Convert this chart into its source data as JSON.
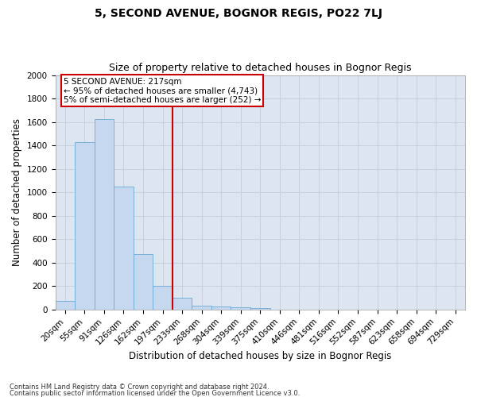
{
  "title": "5, SECOND AVENUE, BOGNOR REGIS, PO22 7LJ",
  "subtitle": "Size of property relative to detached houses in Bognor Regis",
  "xlabel": "Distribution of detached houses by size in Bognor Regis",
  "ylabel": "Number of detached properties",
  "footnote1": "Contains HM Land Registry data © Crown copyright and database right 2024.",
  "footnote2": "Contains public sector information licensed under the Open Government Licence v3.0.",
  "bin_labels": [
    "20sqm",
    "55sqm",
    "91sqm",
    "126sqm",
    "162sqm",
    "197sqm",
    "233sqm",
    "268sqm",
    "304sqm",
    "339sqm",
    "375sqm",
    "410sqm",
    "446sqm",
    "481sqm",
    "516sqm",
    "552sqm",
    "587sqm",
    "623sqm",
    "658sqm",
    "694sqm",
    "729sqm"
  ],
  "bar_values": [
    75,
    1425,
    1625,
    1050,
    475,
    200,
    100,
    35,
    25,
    20,
    15,
    0,
    0,
    0,
    0,
    0,
    0,
    0,
    0,
    0,
    0
  ],
  "bar_color": "#c5d8ef",
  "bar_edge_color": "#6aaad4",
  "red_line_x": 5.5,
  "annotation_line1": "5 SECOND AVENUE: 217sqm",
  "annotation_line2": "← 95% of detached houses are smaller (4,743)",
  "annotation_line3": "5% of semi-detached houses are larger (252) →",
  "annotation_box_color": "#ffffff",
  "annotation_box_edge": "#cc0000",
  "ylim": [
    0,
    2000
  ],
  "yticks": [
    0,
    200,
    400,
    600,
    800,
    1000,
    1200,
    1400,
    1600,
    1800,
    2000
  ],
  "grid_color": "#c8d0de",
  "background_color": "#dce5f0",
  "title_fontsize": 10,
  "subtitle_fontsize": 9,
  "xlabel_fontsize": 8.5,
  "ylabel_fontsize": 8.5,
  "tick_fontsize": 7.5,
  "annot_fontsize": 7.5
}
